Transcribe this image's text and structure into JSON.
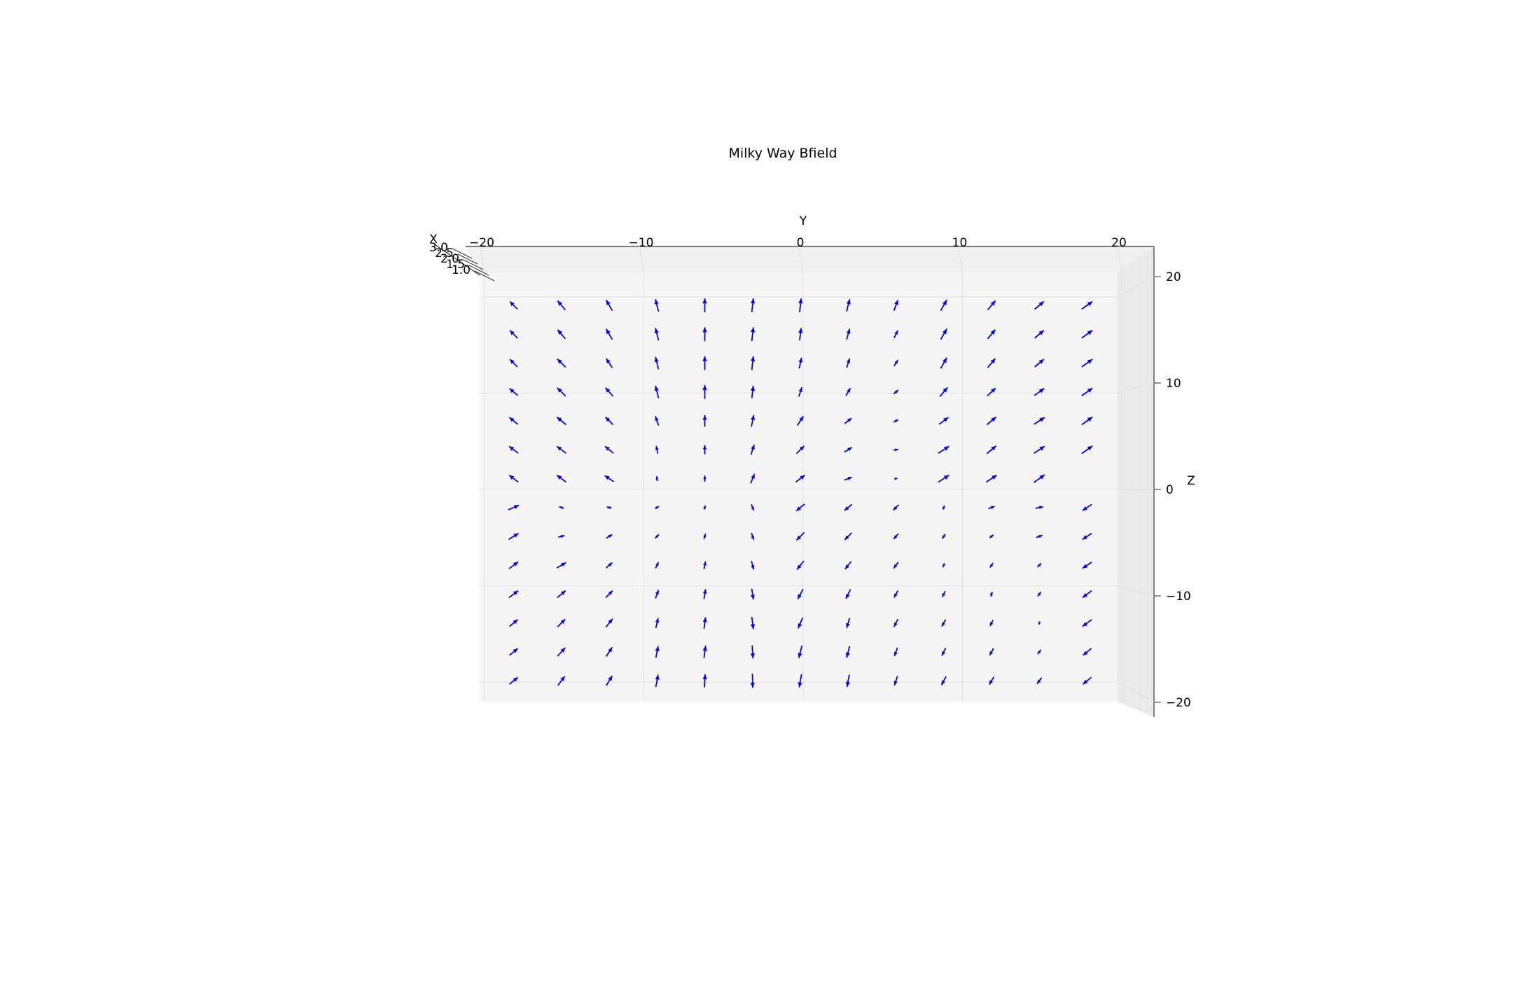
{
  "chart_data": {
    "type": "quiver3d",
    "title": "Milky Way Bfield",
    "xlabel": "X",
    "ylabel": "Y",
    "zlabel": "Z",
    "xlim": [
      1.0,
      3.0
    ],
    "ylim": [
      -22,
      22
    ],
    "zlim": [
      -22,
      22
    ],
    "x_ticks": [
      {
        "value": 1.0,
        "label": "1.0"
      },
      {
        "value": 1.5,
        "label": "1.5"
      },
      {
        "value": 2.0,
        "label": "2.0"
      },
      {
        "value": 2.5,
        "label": "2.5"
      },
      {
        "value": 3.0,
        "label": "3.0"
      }
    ],
    "y_ticks": [
      {
        "value": -20,
        "label": "−20"
      },
      {
        "value": -10,
        "label": "−10"
      },
      {
        "value": 0,
        "label": "0"
      },
      {
        "value": 10,
        "label": "10"
      },
      {
        "value": 20,
        "label": "20"
      }
    ],
    "z_ticks": [
      {
        "value": 20,
        "label": "20"
      },
      {
        "value": 10,
        "label": "10"
      },
      {
        "value": 0,
        "label": "0"
      },
      {
        "value": -10,
        "label": "−10"
      },
      {
        "value": -20,
        "label": "−20"
      }
    ],
    "arrow_color": "#0000ff",
    "grid": true,
    "y_samples": [
      -18,
      -15,
      -12,
      -9,
      -6,
      -3,
      0,
      3,
      6,
      9,
      12,
      15,
      18
    ],
    "z_samples": [
      20,
      17,
      14,
      11,
      8,
      5,
      2,
      -1,
      -4,
      -7,
      -10,
      -13,
      -16,
      -19
    ],
    "arrows": [
      [
        [
          -0.5,
          0.5
        ],
        [
          -0.5,
          0.6
        ],
        [
          -0.4,
          0.7
        ],
        [
          -0.2,
          0.8
        ],
        [
          0,
          0.9
        ],
        [
          0.1,
          0.9
        ],
        [
          0.1,
          0.9
        ],
        [
          0.2,
          0.8
        ],
        [
          0.25,
          0.7
        ],
        [
          0.4,
          0.7
        ],
        [
          0.5,
          0.6
        ],
        [
          0.6,
          0.5
        ],
        [
          0.7,
          0.5
        ]
      ],
      [
        [
          -0.5,
          0.5
        ],
        [
          -0.5,
          0.6
        ],
        [
          -0.4,
          0.7
        ],
        [
          -0.2,
          0.8
        ],
        [
          0,
          0.9
        ],
        [
          0.1,
          0.9
        ],
        [
          0.1,
          0.8
        ],
        [
          0.2,
          0.7
        ],
        [
          0.25,
          0.5
        ],
        [
          0.4,
          0.7
        ],
        [
          0.5,
          0.6
        ],
        [
          0.6,
          0.5
        ],
        [
          0.7,
          0.5
        ]
      ],
      [
        [
          -0.5,
          0.5
        ],
        [
          -0.55,
          0.55
        ],
        [
          -0.4,
          0.6
        ],
        [
          -0.2,
          0.8
        ],
        [
          0,
          0.9
        ],
        [
          0.1,
          0.9
        ],
        [
          0.15,
          0.7
        ],
        [
          0.2,
          0.6
        ],
        [
          0.25,
          0.4
        ],
        [
          0.4,
          0.7
        ],
        [
          0.5,
          0.6
        ],
        [
          0.6,
          0.5
        ],
        [
          0.7,
          0.5
        ]
      ],
      [
        [
          -0.55,
          0.45
        ],
        [
          -0.55,
          0.55
        ],
        [
          -0.5,
          0.55
        ],
        [
          -0.2,
          0.8
        ],
        [
          0,
          0.9
        ],
        [
          0.1,
          0.8
        ],
        [
          0.2,
          0.6
        ],
        [
          0.3,
          0.5
        ],
        [
          0.3,
          0.25
        ],
        [
          0.5,
          0.6
        ],
        [
          0.55,
          0.5
        ],
        [
          0.65,
          0.45
        ],
        [
          0.7,
          0.5
        ]
      ],
      [
        [
          -0.55,
          0.45
        ],
        [
          -0.6,
          0.5
        ],
        [
          -0.5,
          0.5
        ],
        [
          -0.2,
          0.6
        ],
        [
          0,
          0.75
        ],
        [
          0.15,
          0.75
        ],
        [
          0.4,
          0.6
        ],
        [
          0.45,
          0.35
        ],
        [
          0.3,
          0.15
        ],
        [
          0.6,
          0.45
        ],
        [
          0.6,
          0.5
        ],
        [
          0.7,
          0.45
        ],
        [
          0.7,
          0.5
        ]
      ],
      [
        [
          -0.6,
          0.45
        ],
        [
          -0.6,
          0.45
        ],
        [
          -0.55,
          0.45
        ],
        [
          -0.1,
          0.5
        ],
        [
          0,
          0.6
        ],
        [
          0.2,
          0.65
        ],
        [
          0.5,
          0.5
        ],
        [
          0.5,
          0.3
        ],
        [
          0.3,
          0.05
        ],
        [
          0.7,
          0.45
        ],
        [
          0.6,
          0.5
        ],
        [
          0.7,
          0.45
        ],
        [
          0.7,
          0.5
        ]
      ],
      [
        [
          -0.6,
          0.45
        ],
        [
          -0.6,
          0.45
        ],
        [
          -0.6,
          0.4
        ],
        [
          -0.05,
          0.3
        ],
        [
          0,
          0.4
        ],
        [
          0.25,
          0.6
        ],
        [
          0.6,
          0.45
        ],
        [
          0.5,
          0.2
        ],
        [
          0.2,
          0.05
        ],
        [
          0.7,
          0.45
        ],
        [
          0.7,
          0.45
        ],
        [
          0.7,
          0.5
        ],
        [
          0,
          0
        ]
      ],
      [
        [
          0.7,
          0.3
        ],
        [
          -0.3,
          0.1
        ],
        [
          -0.3,
          0.05
        ],
        [
          0.25,
          0.15
        ],
        [
          0.1,
          0.25
        ],
        [
          0.15,
          -0.4
        ],
        [
          -0.55,
          -0.45
        ],
        [
          -0.5,
          -0.4
        ],
        [
          -0.35,
          -0.35
        ],
        [
          0.1,
          0.25
        ],
        [
          0.4,
          0.15
        ],
        [
          0.5,
          0.1
        ],
        [
          -0.6,
          -0.4
        ]
      ],
      [
        [
          0.65,
          0.4
        ],
        [
          0.4,
          0.1
        ],
        [
          0.4,
          0.25
        ],
        [
          0.25,
          0.25
        ],
        [
          0.1,
          0.35
        ],
        [
          0.15,
          -0.45
        ],
        [
          -0.5,
          -0.5
        ],
        [
          -0.45,
          -0.45
        ],
        [
          -0.3,
          -0.35
        ],
        [
          -0.2,
          -0.3
        ],
        [
          0.25,
          0.2
        ],
        [
          0.4,
          0.15
        ],
        [
          -0.6,
          -0.4
        ]
      ],
      [
        [
          0.6,
          0.45
        ],
        [
          0.6,
          0.35
        ],
        [
          0.4,
          0.35
        ],
        [
          0.2,
          0.4
        ],
        [
          0.1,
          0.5
        ],
        [
          0.15,
          -0.55
        ],
        [
          -0.45,
          -0.55
        ],
        [
          -0.4,
          -0.5
        ],
        [
          -0.3,
          -0.4
        ],
        [
          -0.1,
          -0.25
        ],
        [
          -0.2,
          -0.3
        ],
        [
          0.25,
          0.25
        ],
        [
          -0.6,
          -0.4
        ]
      ],
      [
        [
          0.6,
          0.45
        ],
        [
          0.55,
          0.45
        ],
        [
          0.45,
          0.45
        ],
        [
          0.2,
          0.55
        ],
        [
          0.1,
          0.65
        ],
        [
          0.1,
          -0.7
        ],
        [
          -0.35,
          -0.65
        ],
        [
          -0.3,
          -0.6
        ],
        [
          -0.25,
          -0.45
        ],
        [
          -0.2,
          -0.4
        ],
        [
          -0.1,
          -0.3
        ],
        [
          -0.2,
          -0.3
        ],
        [
          -0.6,
          -0.45
        ]
      ],
      [
        [
          0.55,
          0.45
        ],
        [
          0.5,
          0.5
        ],
        [
          0.45,
          0.55
        ],
        [
          0.15,
          0.65
        ],
        [
          0.1,
          0.75
        ],
        [
          0.1,
          -0.8
        ],
        [
          -0.3,
          -0.7
        ],
        [
          -0.2,
          -0.65
        ],
        [
          -0.25,
          -0.5
        ],
        [
          -0.25,
          -0.45
        ],
        [
          -0.2,
          -0.4
        ],
        [
          -0.05,
          -0.2
        ],
        [
          -0.6,
          -0.45
        ]
      ],
      [
        [
          0.55,
          0.45
        ],
        [
          0.5,
          0.55
        ],
        [
          0.4,
          0.6
        ],
        [
          0.15,
          0.75
        ],
        [
          0.1,
          0.8
        ],
        [
          0.05,
          -0.85
        ],
        [
          -0.2,
          -0.8
        ],
        [
          -0.2,
          -0.75
        ],
        [
          -0.2,
          -0.55
        ],
        [
          -0.25,
          -0.5
        ],
        [
          -0.25,
          -0.45
        ],
        [
          -0.2,
          -0.3
        ],
        [
          -0.55,
          -0.45
        ]
      ],
      [
        [
          0.55,
          0.45
        ],
        [
          0.45,
          0.6
        ],
        [
          0.4,
          0.65
        ],
        [
          0.15,
          0.8
        ],
        [
          0.05,
          0.85
        ],
        [
          0.02,
          -0.9
        ],
        [
          -0.15,
          -0.85
        ],
        [
          -0.15,
          -0.8
        ],
        [
          -0.2,
          -0.6
        ],
        [
          -0.3,
          -0.55
        ],
        [
          -0.3,
          -0.5
        ],
        [
          -0.3,
          -0.4
        ],
        [
          -0.55,
          -0.45
        ]
      ]
    ]
  }
}
